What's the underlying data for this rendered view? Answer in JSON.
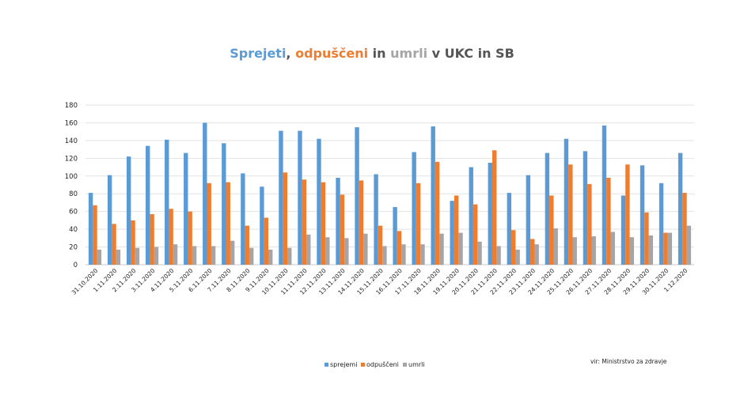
{
  "chart_data": {
    "type": "bar",
    "title_parts": [
      {
        "text": "Sprejeti",
        "color": "#5b9bd5"
      },
      {
        "text": ", ",
        "color": "#555555"
      },
      {
        "text": "odpuščeni",
        "color": "#ed7d31"
      },
      {
        "text": " in ",
        "color": "#555555"
      },
      {
        "text": "umrli",
        "color": "#a5a5a5"
      },
      {
        "text": " v UKC in SB",
        "color": "#555555"
      }
    ],
    "ylim": [
      0,
      180
    ],
    "yticks": [
      0,
      20,
      40,
      60,
      80,
      100,
      120,
      140,
      160,
      180
    ],
    "grid": true,
    "legend_position": "bottom",
    "categories": [
      "31.10.2020",
      "1.11.2020",
      "2.11.2020",
      "3.11.2020",
      "4.11.2020",
      "5.11.2020",
      "6.11.2020",
      "7.11.2020",
      "8.11.2020",
      "9.11.2020",
      "10.11.2020",
      "11.11.2020",
      "12.11.2020",
      "13.11.2020",
      "14.11.2020",
      "15.11.2020",
      "16.11.2020",
      "17.11.2020",
      "18.11.2020",
      "19.11.2020",
      "20.11.2020",
      "21.11.2020",
      "22.11.2020",
      "23.11.2020",
      "24.11.2020",
      "25.11.2020",
      "26.11.2020",
      "27.11.2020",
      "28.11.2020",
      "29.11.2020",
      "30.11.2020",
      "1.12.2020"
    ],
    "series": [
      {
        "name": "sprejemi",
        "color": "#5b9bd5",
        "values": [
          81,
          101,
          122,
          134,
          141,
          126,
          160,
          137,
          103,
          88,
          151,
          151,
          142,
          98,
          155,
          102,
          65,
          127,
          156,
          72,
          110,
          115,
          81,
          101,
          126,
          142,
          128,
          157,
          78,
          112,
          92,
          126
        ]
      },
      {
        "name": "odpuščeni",
        "color": "#ed7d31",
        "values": [
          67,
          46,
          50,
          57,
          63,
          60,
          92,
          93,
          44,
          53,
          104,
          96,
          93,
          79,
          95,
          44,
          38,
          92,
          116,
          78,
          68,
          129,
          39,
          29,
          78,
          113,
          91,
          98,
          113,
          59,
          36,
          81
        ]
      },
      {
        "name": "umrli",
        "color": "#a5a5a5",
        "values": [
          17,
          17,
          19,
          20,
          23,
          21,
          21,
          27,
          19,
          17,
          19,
          34,
          31,
          30,
          35,
          21,
          23,
          23,
          35,
          36,
          26,
          21,
          17,
          23,
          41,
          31,
          32,
          37,
          31,
          33,
          36,
          44
        ]
      }
    ]
  },
  "source_note": "vir: Ministrstvo za zdravje"
}
